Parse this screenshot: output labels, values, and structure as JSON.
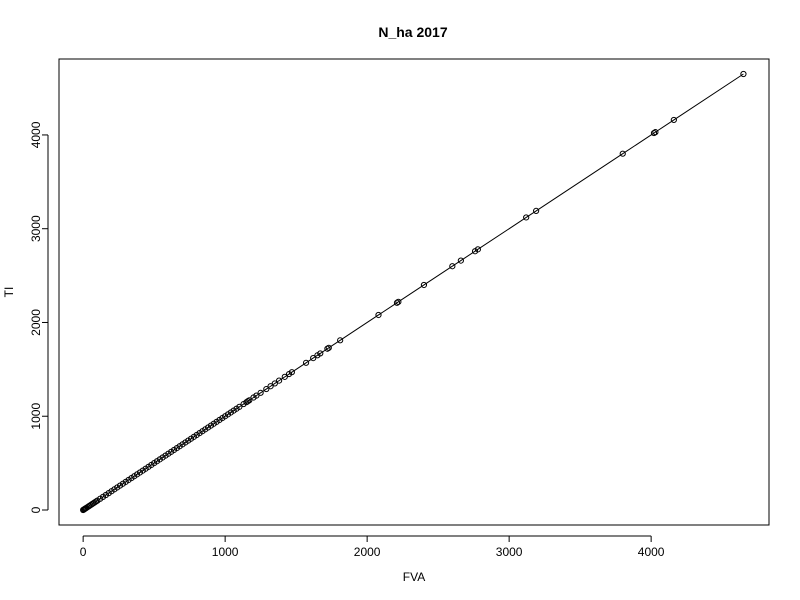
{
  "chart_data": {
    "type": "scatter",
    "title": "N_ha 2017",
    "xlabel": "FVA",
    "ylabel": "TI",
    "xlim": [
      -170,
      4830
    ],
    "ylim": [
      -160,
      4810
    ],
    "xticks": [
      0,
      1000,
      2000,
      3000,
      4000
    ],
    "yticks": [
      0,
      1000,
      2000,
      3000,
      4000
    ],
    "grid": false,
    "connect_points": true,
    "x": [
      0,
      5,
      10,
      15,
      20,
      30,
      40,
      50,
      60,
      70,
      80,
      90,
      100,
      120,
      140,
      160,
      180,
      200,
      220,
      240,
      260,
      280,
      300,
      320,
      340,
      360,
      380,
      400,
      420,
      440,
      460,
      480,
      500,
      520,
      540,
      560,
      580,
      600,
      620,
      640,
      660,
      680,
      700,
      720,
      740,
      760,
      780,
      800,
      820,
      840,
      860,
      880,
      900,
      920,
      940,
      960,
      980,
      1000,
      1020,
      1040,
      1060,
      1080,
      1100,
      1130,
      1150,
      1160,
      1170,
      1200,
      1220,
      1250,
      1290,
      1320,
      1350,
      1380,
      1420,
      1450,
      1470,
      1570,
      1620,
      1650,
      1670,
      1720,
      1730,
      1810,
      2080,
      2210,
      2220,
      2400,
      2600,
      2660,
      2760,
      2780,
      3120,
      3190,
      3800,
      4020,
      4030,
      4160,
      4650
    ],
    "y": [
      0,
      5,
      10,
      15,
      20,
      30,
      40,
      50,
      60,
      70,
      80,
      90,
      100,
      120,
      140,
      160,
      180,
      200,
      220,
      240,
      260,
      280,
      300,
      320,
      340,
      360,
      380,
      400,
      420,
      440,
      460,
      480,
      500,
      520,
      540,
      560,
      580,
      600,
      620,
      640,
      660,
      680,
      700,
      720,
      740,
      760,
      780,
      800,
      820,
      840,
      860,
      880,
      900,
      920,
      940,
      960,
      980,
      1000,
      1020,
      1040,
      1060,
      1080,
      1100,
      1130,
      1150,
      1160,
      1170,
      1200,
      1220,
      1250,
      1290,
      1320,
      1350,
      1380,
      1420,
      1450,
      1470,
      1570,
      1620,
      1650,
      1670,
      1720,
      1730,
      1810,
      2080,
      2210,
      2220,
      2400,
      2600,
      2660,
      2760,
      2780,
      3120,
      3190,
      3800,
      4020,
      4030,
      4160,
      4650
    ]
  }
}
